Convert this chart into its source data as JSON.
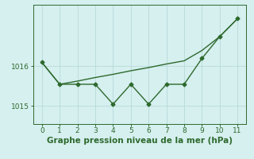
{
  "x": [
    0,
    1,
    2,
    3,
    4,
    5,
    6,
    7,
    8,
    9,
    10,
    11
  ],
  "line_jagged": [
    1016.1,
    1015.55,
    1015.55,
    1015.55,
    1015.05,
    1015.55,
    1015.05,
    1015.55,
    1015.55,
    1016.2,
    1016.75,
    1017.2
  ],
  "line_trend": [
    1016.1,
    1015.55,
    1015.63,
    1015.72,
    1015.8,
    1015.89,
    1015.97,
    1016.06,
    1016.14,
    1016.4,
    1016.75,
    1017.2
  ],
  "color": "#2d6a2d",
  "bg_color": "#d6efef",
  "grid_color": "#b8dada",
  "xlabel": "Graphe pression niveau de la mer (hPa)",
  "ylim": [
    1014.55,
    1017.55
  ],
  "xlim": [
    -0.5,
    11.5
  ],
  "yticks": [
    1015,
    1016
  ],
  "xticks": [
    0,
    1,
    2,
    3,
    4,
    5,
    6,
    7,
    8,
    9,
    10,
    11
  ],
  "marker": "D",
  "markersize": 2.5,
  "linewidth": 1.0,
  "xlabel_fontsize": 7.5,
  "tick_fontsize": 6.5
}
